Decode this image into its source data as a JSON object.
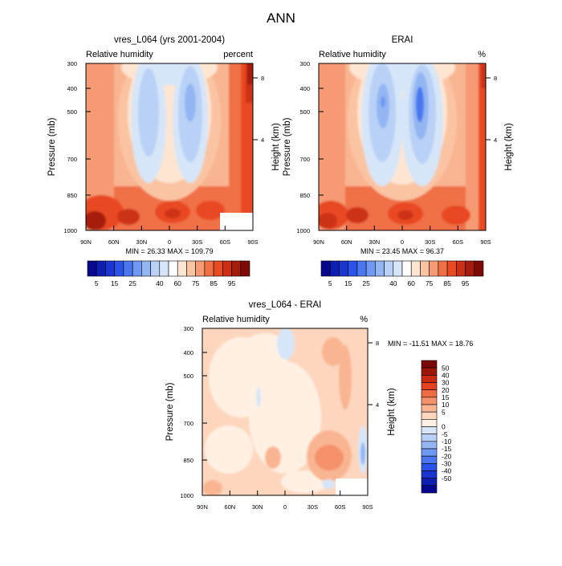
{
  "page_title": "ANN",
  "colors": {
    "rh_levels": [
      "#08088f",
      "#0d1fb0",
      "#1a35d0",
      "#2b52e8",
      "#4a77f0",
      "#6e98f3",
      "#93b6f2",
      "#b9d1f6",
      "#d6e6f8",
      "#ffffff",
      "#fde5d2",
      "#fac4a3",
      "#f59a72",
      "#f07046",
      "#e84a22",
      "#cc3014",
      "#a61c0c",
      "#7d0a06"
    ],
    "diff_levels": [
      "#08088f",
      "#0d1fb0",
      "#1a35d0",
      "#2b52e8",
      "#4a77f0",
      "#6e98f3",
      "#93b6f2",
      "#b9d1f6",
      "#d6e6f8",
      "#fff0e3",
      "#fdd6bd",
      "#f9b592",
      "#f5916a",
      "#ef6b42",
      "#e54320",
      "#c82b12",
      "#9e150a",
      "#7a0605"
    ]
  },
  "chart_data": [
    {
      "type": "heatmap",
      "title": "vres_L064 (yrs 2001-2004)",
      "left_label": "Relative humidity",
      "right_label": "percent",
      "ylabel": "Pressure (mb)",
      "ylabel_right": "Height (km)",
      "xticks": [
        "90N",
        "60N",
        "30N",
        "0",
        "30S",
        "60S",
        "90S"
      ],
      "yticks": [
        "300",
        "400",
        "500",
        "700",
        "850",
        "1000"
      ],
      "right_ticks": [
        "8",
        "4"
      ],
      "stats": "MIN = 26.33  MAX = 109.79",
      "colorbar_labels": [
        "5",
        "15",
        "25",
        "40",
        "60",
        "75",
        "85",
        "95"
      ]
    },
    {
      "type": "heatmap",
      "title": "ERAI",
      "left_label": "Relative humidity",
      "right_label": "%",
      "ylabel": "Pressure (mb)",
      "ylabel_right": "Height (km)",
      "xticks": [
        "90N",
        "60N",
        "30N",
        "0",
        "30S",
        "60S",
        "90S"
      ],
      "yticks": [
        "300",
        "400",
        "500",
        "700",
        "850",
        "1000"
      ],
      "right_ticks": [
        "8",
        "4"
      ],
      "stats": "MIN = 23.45  MAX = 96.37",
      "colorbar_labels": [
        "5",
        "15",
        "25",
        "40",
        "60",
        "75",
        "85",
        "95"
      ]
    },
    {
      "type": "heatmap",
      "title": "vres_L064 - ERAI",
      "left_label": "Relative humidity",
      "right_label": "%",
      "ylabel": "Pressure (mb)",
      "ylabel_right": "Height (km)",
      "xticks": [
        "90N",
        "60N",
        "30N",
        "0",
        "30S",
        "60S",
        "90S"
      ],
      "yticks": [
        "300",
        "400",
        "500",
        "700",
        "850",
        "1000"
      ],
      "right_ticks": [
        "8",
        "4"
      ],
      "stats": "MIN = -11.51  MAX =  18.76",
      "colorbar_labels": [
        "50",
        "40",
        "30",
        "20",
        "15",
        "10",
        "5",
        "0",
        "-5",
        "-10",
        "-15",
        "-20",
        "-30",
        "-40",
        "-50"
      ]
    }
  ]
}
